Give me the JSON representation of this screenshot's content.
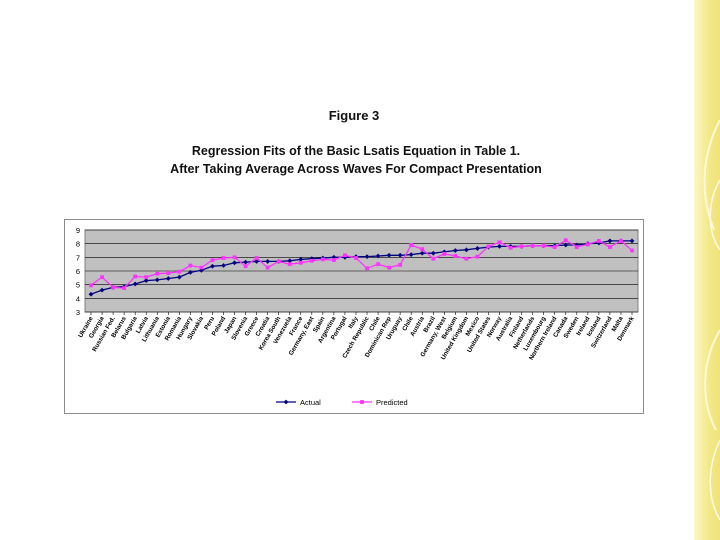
{
  "figure_label": "Figure 3",
  "subtitle_line1": "Regression Fits of the Basic Lsatis Equation in Table 1.",
  "subtitle_line2": "After Taking Average Across Waves For Compact Presentation",
  "colors": {
    "plot_bg": "#c0c0c0",
    "actual": "#000080",
    "predicted": "#ff33ff",
    "frame": "#8c8c8c",
    "side_strip": "#f3e98a"
  },
  "chart_data": {
    "type": "line",
    "xlabel": "",
    "ylabel": "",
    "ylim": [
      3,
      9
    ],
    "yticks": [
      3,
      4,
      5,
      6,
      7,
      8,
      9
    ],
    "grid": true,
    "legend_placement": "bottom",
    "categories": [
      "Ukraine",
      "Georgia",
      "Russian Fed.",
      "Belarus",
      "Bulgaria",
      "Latvia",
      "Lithuania",
      "Estonia",
      "Romania",
      "Hungary",
      "Slovakia",
      "Peru",
      "Poland",
      "Japan",
      "Slovenia",
      "Greece",
      "Croatia",
      "Korea South",
      "Venezuela",
      "France",
      "Germany, East",
      "Spain",
      "Argentina",
      "Portugal",
      "Italy",
      "Czech Republic",
      "Chile",
      "Dominican Rep",
      "Uruguay",
      "Chile",
      "Austria",
      "Brazil",
      "Germany, West",
      "Belgium",
      "United Kingdom",
      "Mexico",
      "United States",
      "Norway",
      "Australia",
      "Finland",
      "Netherlands",
      "Luxembourg",
      "Northern Ireland",
      "Canada",
      "Sweden",
      "Ireland",
      "Iceland",
      "Switzerland",
      "Malta",
      "Denmark"
    ],
    "series": [
      {
        "name": "Actual",
        "values": [
          4.3,
          4.6,
          4.8,
          4.85,
          5.05,
          5.3,
          5.35,
          5.45,
          5.55,
          5.9,
          6.05,
          6.35,
          6.4,
          6.6,
          6.65,
          6.7,
          6.7,
          6.7,
          6.75,
          6.85,
          6.9,
          6.95,
          7.0,
          7.0,
          7.05,
          7.05,
          7.1,
          7.15,
          7.15,
          7.2,
          7.3,
          7.3,
          7.4,
          7.5,
          7.55,
          7.65,
          7.75,
          7.8,
          7.8,
          7.8,
          7.85,
          7.85,
          7.85,
          7.9,
          7.9,
          8.0,
          8.05,
          8.2,
          8.2,
          8.2
        ]
      },
      {
        "name": "Predicted",
        "values": [
          4.95,
          5.55,
          4.8,
          4.75,
          5.6,
          5.55,
          5.8,
          5.85,
          5.95,
          6.4,
          6.25,
          6.8,
          6.95,
          7.0,
          6.35,
          6.95,
          6.25,
          6.7,
          6.5,
          6.6,
          6.75,
          6.85,
          6.8,
          7.15,
          6.95,
          6.2,
          6.5,
          6.25,
          6.45,
          7.9,
          7.6,
          6.9,
          7.25,
          7.1,
          6.9,
          7.05,
          7.8,
          8.1,
          7.7,
          7.8,
          7.85,
          7.85,
          7.75,
          8.25,
          7.75,
          7.95,
          8.2,
          7.75,
          8.2,
          7.5
        ]
      }
    ]
  }
}
